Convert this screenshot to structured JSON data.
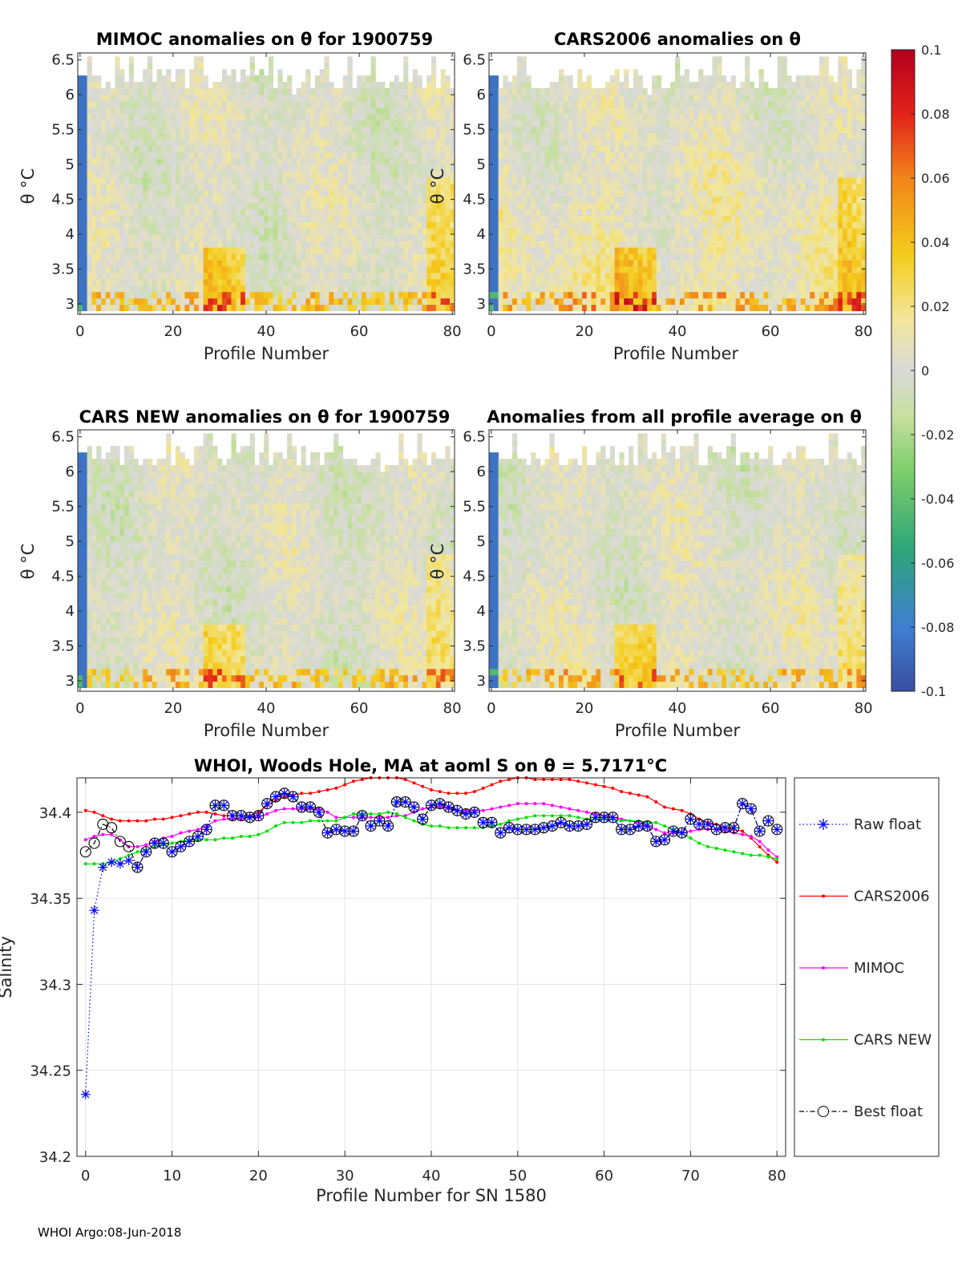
{
  "footer": "WHOI Argo:08-Jun-2018",
  "colors": {
    "raw_float": "#0000ff",
    "cars2006": "#ff0000",
    "mimoc": "#ff00ff",
    "cars_new": "#00e000",
    "best_float": "#000000",
    "grid": "#e3e3e3"
  },
  "heatmaps": [
    {
      "title": "MIMOC anomalies on θ  for 1900759",
      "xlabel": "Profile Number",
      "ylabel": "θ °C",
      "seed": 1,
      "warm_bias": 0.002,
      "x_ticks": [
        "0",
        "20",
        "40",
        "60",
        "80"
      ],
      "y_ticks": [
        "3",
        "3.5",
        "4",
        "4.5",
        "5",
        "5.5",
        "6",
        "6.5"
      ]
    },
    {
      "title": "CARS2006 anomalies on θ",
      "xlabel": "Profile Number",
      "ylabel": "θ °C",
      "seed": 2,
      "warm_bias": 0.012,
      "x_ticks": [
        "0",
        "20",
        "40",
        "60",
        "80"
      ],
      "y_ticks": [
        "3",
        "3.5",
        "4",
        "4.5",
        "5",
        "5.5",
        "6",
        "6.5"
      ]
    },
    {
      "title": "CARS NEW anomalies on θ for 1900759",
      "xlabel": "Profile Number",
      "ylabel": "θ °C",
      "seed": 3,
      "warm_bias": 0.001,
      "x_ticks": [
        "0",
        "20",
        "40",
        "60",
        "80"
      ],
      "y_ticks": [
        "3",
        "3.5",
        "4",
        "4.5",
        "5",
        "5.5",
        "6",
        "6.5"
      ]
    },
    {
      "title": "Anomalies from all profile average on θ",
      "xlabel": "Profile Number",
      "ylabel": "θ °C",
      "seed": 4,
      "warm_bias": 0.004,
      "x_ticks": [
        "0",
        "20",
        "40",
        "60",
        "80"
      ],
      "y_ticks": [
        "3",
        "3.5",
        "4",
        "4.5",
        "5",
        "5.5",
        "6",
        "6.5"
      ]
    }
  ],
  "colorbar": {
    "min": -0.1,
    "max": 0.1,
    "ticks": [
      "0.1",
      "0.08",
      "0.06",
      "0.04",
      "0.02",
      "0",
      "-0.02",
      "-0.04",
      "-0.06",
      "-0.08",
      "-0.1"
    ]
  },
  "chart_data": [
    {
      "type": "heatmap",
      "title": "MIMOC anomalies on θ  for 1900759",
      "xlabel": "Profile Number",
      "ylabel": "θ °C",
      "xlim": [
        -0.5,
        80.5
      ],
      "ylim": [
        2.85,
        6.6
      ],
      "clim": [
        -0.1,
        0.1
      ]
    },
    {
      "type": "line",
      "title": "WHOI, Woods Hole, MA at aoml S on θ = 5.7171°C",
      "xlabel": "Profile Number for SN 1580",
      "ylabel": "Salinity",
      "xlim": [
        -1,
        81
      ],
      "ylim": [
        34.2,
        34.42
      ],
      "x_ticks": [
        "0",
        "10",
        "20",
        "30",
        "40",
        "50",
        "60",
        "70",
        "80"
      ],
      "y_ticks": [
        "34.2",
        "34.25",
        "34.3",
        "34.35",
        "34.4"
      ],
      "x": [
        0,
        1,
        2,
        3,
        4,
        5,
        6,
        7,
        8,
        9,
        10,
        11,
        12,
        13,
        14,
        15,
        16,
        17,
        18,
        19,
        20,
        21,
        22,
        23,
        24,
        25,
        26,
        27,
        28,
        29,
        30,
        31,
        32,
        33,
        34,
        35,
        36,
        37,
        38,
        39,
        40,
        41,
        42,
        43,
        44,
        45,
        46,
        47,
        48,
        49,
        50,
        51,
        52,
        53,
        54,
        55,
        56,
        57,
        58,
        59,
        60,
        61,
        62,
        63,
        64,
        65,
        66,
        67,
        68,
        69,
        70,
        71,
        72,
        73,
        74,
        75,
        76,
        77,
        78,
        79,
        80
      ],
      "series": [
        {
          "name": "Raw float",
          "style": "dotted-star",
          "values": [
            34.236,
            34.343,
            34.368,
            34.371,
            34.37,
            34.372,
            34.368,
            34.377,
            34.382,
            34.382,
            34.377,
            34.38,
            34.383,
            34.386,
            34.39,
            34.404,
            34.404,
            34.398,
            34.398,
            34.397,
            34.398,
            34.405,
            34.409,
            34.411,
            34.409,
            34.403,
            34.403,
            34.4,
            34.388,
            34.39,
            34.389,
            34.389,
            34.398,
            34.392,
            34.395,
            34.392,
            34.406,
            34.406,
            34.403,
            34.396,
            34.404,
            34.405,
            34.403,
            34.401,
            34.399,
            34.4,
            34.394,
            34.394,
            34.388,
            34.391,
            34.39,
            34.39,
            34.39,
            34.391,
            34.392,
            34.394,
            34.392,
            34.392,
            34.393,
            34.397,
            34.397,
            34.397,
            34.39,
            34.39,
            34.392,
            34.392,
            34.383,
            34.384,
            34.389,
            34.388,
            34.396,
            34.393,
            34.393,
            34.39,
            34.391,
            34.391,
            34.405,
            34.402,
            34.389,
            34.395,
            34.39
          ]
        },
        {
          "name": "CARS2006",
          "style": "line-dot",
          "values": [
            34.401,
            34.4,
            34.398,
            34.396,
            34.395,
            34.395,
            34.395,
            34.395,
            34.396,
            34.396,
            34.397,
            34.398,
            34.399,
            34.4,
            34.4,
            34.399,
            34.398,
            34.398,
            34.398,
            34.398,
            34.4,
            34.404,
            34.407,
            34.409,
            34.41,
            34.411,
            34.411,
            34.412,
            34.413,
            34.414,
            34.416,
            34.418,
            34.419,
            34.42,
            34.42,
            34.42,
            34.42,
            34.419,
            34.417,
            34.415,
            34.413,
            34.412,
            34.411,
            34.411,
            34.411,
            34.412,
            34.414,
            34.416,
            34.418,
            34.419,
            34.42,
            34.42,
            34.419,
            34.419,
            34.419,
            34.419,
            34.419,
            34.418,
            34.417,
            34.416,
            34.415,
            34.414,
            34.412,
            34.411,
            34.41,
            34.409,
            34.406,
            34.403,
            34.402,
            34.401,
            34.399,
            34.396,
            34.394,
            34.393,
            34.391,
            34.39,
            34.389,
            34.385,
            34.38,
            34.375,
            34.371
          ]
        },
        {
          "name": "MIMOC",
          "style": "line-dot",
          "values": [
            34.384,
            34.386,
            34.387,
            34.387,
            34.384,
            34.38,
            34.38,
            34.381,
            34.383,
            34.385,
            34.386,
            34.388,
            34.389,
            34.39,
            34.392,
            34.395,
            34.396,
            34.396,
            34.396,
            34.397,
            34.397,
            34.399,
            34.401,
            34.402,
            34.402,
            34.402,
            34.402,
            34.402,
            34.4,
            34.397,
            34.397,
            34.397,
            34.397,
            34.397,
            34.397,
            34.397,
            34.398,
            34.398,
            34.4,
            34.402,
            34.403,
            34.403,
            34.402,
            34.401,
            34.401,
            34.401,
            34.401,
            34.402,
            34.403,
            34.404,
            34.405,
            34.405,
            34.405,
            34.405,
            34.404,
            34.403,
            34.402,
            34.401,
            34.4,
            34.399,
            34.398,
            34.397,
            34.396,
            34.395,
            34.394,
            34.392,
            34.39,
            34.388,
            34.388,
            34.388,
            34.389,
            34.39,
            34.39,
            34.39,
            34.389,
            34.388,
            34.387,
            34.386,
            34.383,
            34.378,
            34.374
          ]
        },
        {
          "name": "CARS NEW",
          "style": "line-dot",
          "values": [
            34.37,
            34.37,
            34.37,
            34.371,
            34.373,
            34.375,
            34.377,
            34.378,
            34.38,
            34.381,
            34.382,
            34.383,
            34.384,
            34.384,
            34.384,
            34.384,
            34.385,
            34.385,
            34.386,
            34.386,
            34.387,
            34.389,
            34.392,
            34.394,
            34.394,
            34.394,
            34.395,
            34.395,
            34.395,
            34.395,
            34.397,
            34.399,
            34.399,
            34.399,
            34.399,
            34.4,
            34.399,
            34.397,
            34.395,
            34.393,
            34.392,
            34.392,
            34.391,
            34.391,
            34.391,
            34.391,
            34.391,
            34.392,
            34.393,
            34.395,
            34.396,
            34.397,
            34.398,
            34.398,
            34.398,
            34.398,
            34.398,
            34.397,
            34.396,
            34.396,
            34.396,
            34.396,
            34.395,
            34.395,
            34.395,
            34.394,
            34.394,
            34.392,
            34.39,
            34.388,
            34.385,
            34.382,
            34.38,
            34.379,
            34.378,
            34.377,
            34.376,
            34.375,
            34.375,
            34.374,
            34.373
          ]
        },
        {
          "name": "Best float",
          "style": "dashdot-circle",
          "values": [
            34.377,
            34.382,
            34.393,
            34.391,
            34.383,
            34.38,
            34.368,
            34.377,
            34.382,
            34.382,
            34.377,
            34.38,
            34.383,
            34.386,
            34.39,
            34.404,
            34.404,
            34.398,
            34.398,
            34.397,
            34.398,
            34.405,
            34.409,
            34.411,
            34.409,
            34.403,
            34.403,
            34.4,
            34.388,
            34.39,
            34.389,
            34.389,
            34.398,
            34.392,
            34.395,
            34.392,
            34.406,
            34.406,
            34.403,
            34.396,
            34.404,
            34.405,
            34.403,
            34.401,
            34.399,
            34.4,
            34.394,
            34.394,
            34.388,
            34.391,
            34.39,
            34.39,
            34.39,
            34.391,
            34.392,
            34.394,
            34.392,
            34.392,
            34.393,
            34.397,
            34.397,
            34.397,
            34.39,
            34.39,
            34.392,
            34.392,
            34.383,
            34.384,
            34.389,
            34.388,
            34.396,
            34.393,
            34.393,
            34.39,
            34.391,
            34.391,
            34.405,
            34.402,
            34.389,
            34.395,
            34.39
          ]
        }
      ]
    }
  ]
}
